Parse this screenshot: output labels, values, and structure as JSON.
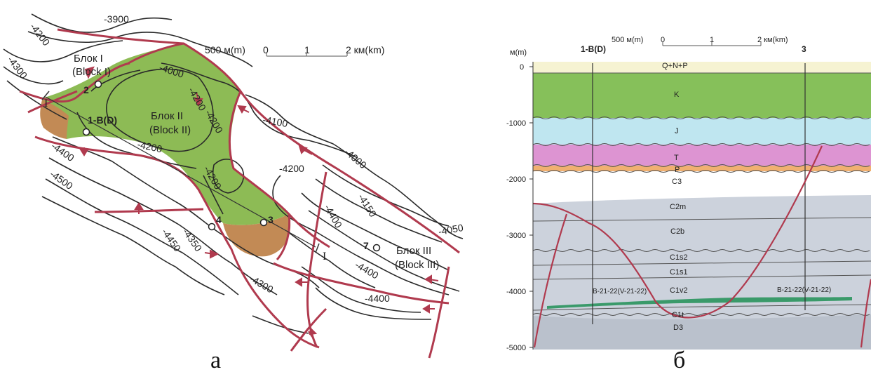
{
  "map_panel": {
    "scale": {
      "label": "500 м(m)",
      "ticks": [
        "0",
        "1",
        "2 км(km)"
      ]
    },
    "contours": [
      "-3900",
      "-4200",
      "-4300",
      "-4000",
      "-4200",
      "-4200",
      "-4200",
      "-4100",
      "-4000",
      "-4200",
      "-4200",
      "-4150",
      "-4050",
      "-4400",
      "-4500",
      "-4400",
      "-4450",
      "-4350",
      "-4300",
      "-4400",
      "-4400"
    ],
    "blocks": [
      {
        "ru": "Блок I",
        "en": "(Block I)"
      },
      {
        "ru": "Блок II",
        "en": "(Block II)"
      },
      {
        "ru": "Блок III",
        "en": "(Block III)"
      }
    ],
    "wells": [
      "2",
      "1-B(D)",
      "4",
      "3",
      "7"
    ],
    "section_line": [
      "I",
      "I"
    ],
    "caption": "а",
    "colors": {
      "fault": "#b03a4e",
      "oil_zone": "#8dbb55",
      "water_zone": "#c28a55",
      "contour": "#2a2a2a"
    }
  },
  "section_panel": {
    "scale": {
      "label": "500 м(m)",
      "ticks": [
        "0",
        "1",
        "2 км(km)"
      ]
    },
    "y_axis": {
      "unit": "м(m)",
      "ticks": [
        "0",
        "-1000",
        "-2000",
        "-3000",
        "-4000",
        "-5000"
      ]
    },
    "wells": [
      "1-B(D)",
      "3"
    ],
    "layers": [
      {
        "label": "Q+N+P",
        "color": "#f6f3d2"
      },
      {
        "label": "K",
        "color": "#86c05a"
      },
      {
        "label": "J",
        "color": "#bfe6f0"
      },
      {
        "label": "T",
        "color": "#dd94d2"
      },
      {
        "label": "P",
        "color": "#f0b070"
      },
      {
        "label": "C3",
        "color": "#ffffff"
      },
      {
        "label": "C2m",
        "color": "#cdd3de"
      },
      {
        "label": "C2b",
        "color": "#cdd3de"
      },
      {
        "label": "C1s2",
        "color": "#c6ccd6"
      },
      {
        "label": "C1s1",
        "color": "#c6ccd6"
      },
      {
        "label": "C1v2",
        "color": "#c6ccd6"
      },
      {
        "label": "C1t",
        "color": "#bcc3ce"
      },
      {
        "label": "D3",
        "color": "#b8bfca"
      }
    ],
    "reservoir_labels": [
      "B-21-22(V-21-22)",
      "B-21-22(V-21-22)"
    ],
    "caption": "б"
  }
}
